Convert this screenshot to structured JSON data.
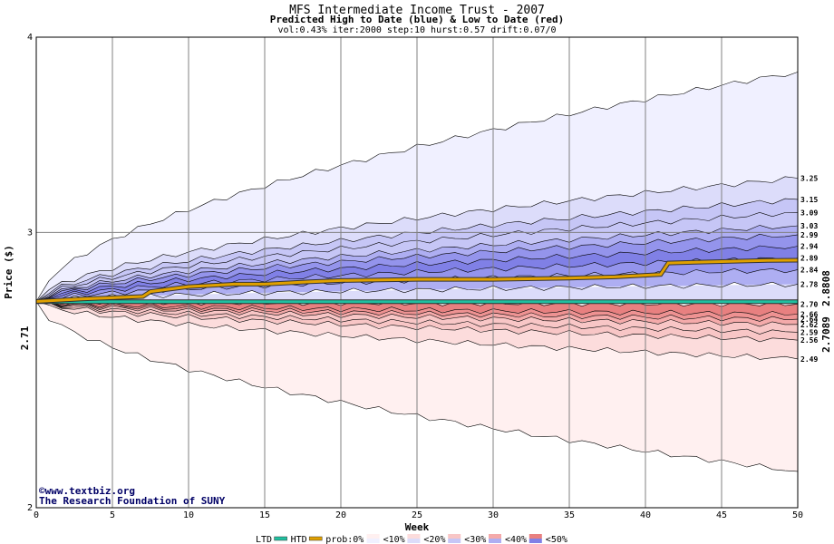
{
  "chart_data": {
    "type": "area",
    "title": "MFS Intermediate Income Trust - 2007",
    "subtitle": "Predicted High to Date (blue) &  Low to Date (red)",
    "params": "vol:0.43% iter:2000 step:10 hurst:0.57 drift:0.07/0",
    "xlabel": "Week",
    "ylabel": "Price ($)",
    "xlim": [
      0,
      50
    ],
    "ylim": [
      2,
      4
    ],
    "yscale": "log",
    "grid": true,
    "x_ticks": [
      "0",
      "5",
      "10",
      "15",
      "20",
      "25",
      "30",
      "35",
      "40",
      "45",
      "50"
    ],
    "y_ticks": [
      "2",
      "3",
      "4"
    ],
    "start_price": 2.71,
    "start_label": "2.71",
    "high_bands_end": [
      3.25,
      3.15,
      3.09,
      3.03,
      2.99,
      2.94,
      2.89,
      2.84,
      2.78
    ],
    "high_band_labels": [
      "3.25",
      "3.15",
      "3.09",
      "3.03",
      "2.99",
      "2.94",
      "2.89",
      "2.84",
      "2.78"
    ],
    "low_bands_end": [
      2.7,
      2.66,
      2.64,
      2.62,
      2.59,
      2.56,
      2.49
    ],
    "low_band_labels": [
      "2.70",
      "2.66",
      "2.64",
      "2.62",
      "2.59",
      "2.56",
      "2.49"
    ],
    "outer_high_end": 3.8,
    "outer_low_end": 2.11,
    "series": [
      {
        "name": "LTD",
        "color": "#20c0a0",
        "x": [
          0,
          22,
          50
        ],
        "values": [
          2.7089,
          2.7089,
          2.7089
        ]
      },
      {
        "name": "HTD",
        "color": "#e0a000",
        "x": [
          0,
          3,
          7,
          7.5,
          10,
          13,
          15,
          18,
          20,
          25,
          30,
          35,
          38,
          41,
          41.5,
          45,
          48,
          50
        ],
        "values": [
          2.71,
          2.72,
          2.73,
          2.75,
          2.77,
          2.78,
          2.78,
          2.79,
          2.795,
          2.8,
          2.8,
          2.805,
          2.81,
          2.82,
          2.868,
          2.874,
          2.879,
          2.88
        ]
      }
    ],
    "ltd_value_label": "2.7089",
    "htd_value_label": "2.8808",
    "legend": {
      "position": "bottom",
      "items": [
        "LTD",
        "HTD",
        "prob:0%",
        "<10%",
        "<20%",
        "<30%",
        "<40%",
        "<50%"
      ]
    },
    "colors": {
      "blue_bands": [
        "#f0f0ff",
        "#dcdcfa",
        "#c6c6f6",
        "#aeaef2",
        "#9494ec",
        "#8080e6"
      ],
      "red_bands": [
        "#fff0f0",
        "#fcdcdc",
        "#f8c6c6",
        "#f4aaaa",
        "#ee9292",
        "#e88080"
      ],
      "ltd_value": "#008060",
      "htd_value": "#c08000",
      "start_label": "#008000"
    },
    "credit": [
      "©www.textbiz.org",
      "The Research Foundation of SUNY"
    ]
  }
}
